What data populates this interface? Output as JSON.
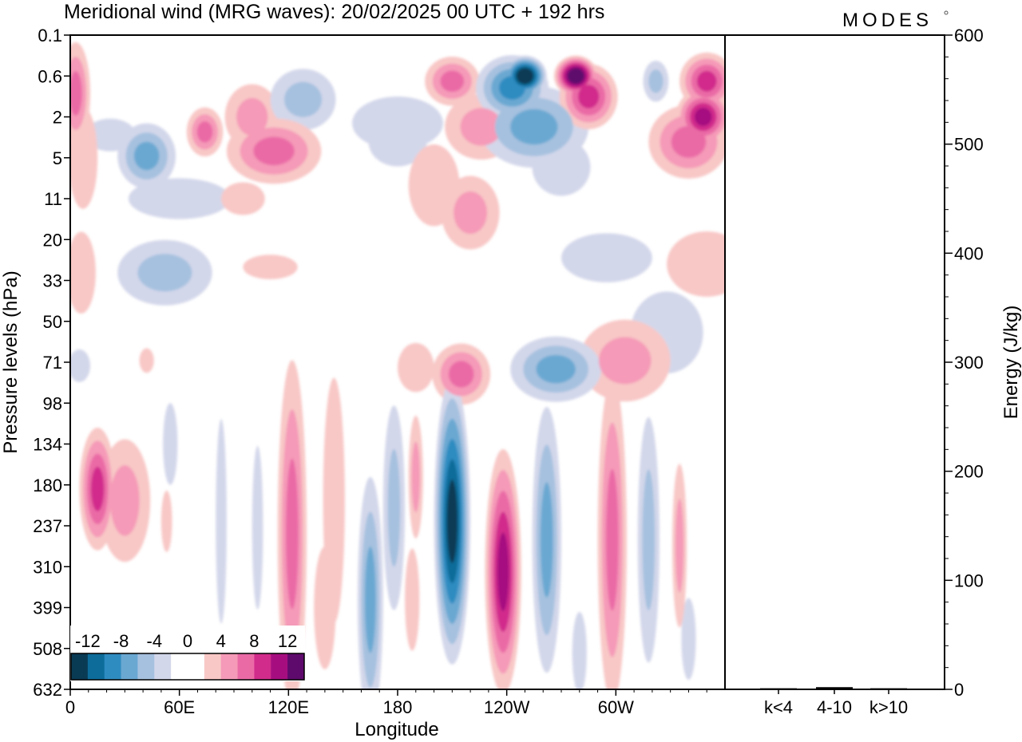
{
  "title": "Meridional wind (MRG waves):  20/02/2025  00 UTC  + 192 hrs",
  "logo": "MODES",
  "colors": {
    "neg": [
      "#0a3b55",
      "#0d6c9a",
      "#2f8cc1",
      "#6aa8d2",
      "#a6c1df",
      "#d3d7ea"
    ],
    "pos": [
      "#f8c8c6",
      "#f59ab8",
      "#ea6aa6",
      "#d12c8c",
      "#a60e80",
      "#5e0a6d"
    ],
    "zero": "#ffffff"
  },
  "chart_data": [
    {
      "type": "heatmap",
      "title": "",
      "xlabel": "Longitude",
      "ylabel": "Pressure levels (hPa)",
      "x_ticks": [
        "0",
        "60E",
        "120E",
        "180",
        "120W",
        "60W"
      ],
      "x_tick_values": [
        0,
        60,
        120,
        180,
        240,
        300
      ],
      "xlim": [
        0,
        360
      ],
      "y_ticks": [
        "0.1",
        "0.6",
        "2",
        "5",
        "11",
        "20",
        "33",
        "50",
        "71",
        "98",
        "134",
        "180",
        "237",
        "310",
        "399",
        "508",
        "632"
      ],
      "colorbar": {
        "labels": [
          "-12",
          "-8",
          "-4",
          "0",
          "4",
          "8",
          "12"
        ],
        "values": [
          -12,
          -8,
          -4,
          0,
          4,
          8,
          12
        ]
      },
      "features": [
        {
          "lon": 250,
          "lev": 0.6,
          "value": -14,
          "w": 12,
          "h": 1.0
        },
        {
          "lon": 243,
          "lev": 0.85,
          "value": -8,
          "w": 20,
          "h": 1.6
        },
        {
          "lon": 278,
          "lev": 0.6,
          "value": 14,
          "w": 12,
          "h": 1.0
        },
        {
          "lon": 285,
          "lev": 1.1,
          "value": 9,
          "w": 16,
          "h": 1.6
        },
        {
          "lon": 210,
          "lev": 0.7,
          "value": 6,
          "w": 15,
          "h": 1.2
        },
        {
          "lon": 350,
          "lev": 0.7,
          "value": 8,
          "w": 15,
          "h": 1.4
        },
        {
          "lon": 348,
          "lev": 2.0,
          "value": 10,
          "w": 15,
          "h": 1.4
        },
        {
          "lon": 340,
          "lev": 3.5,
          "value": 6,
          "w": 22,
          "h": 1.8
        },
        {
          "lon": 322,
          "lev": 0.7,
          "value": -5,
          "w": 7,
          "h": 1.0
        },
        {
          "lon": 3,
          "lev": 1.0,
          "value": 6,
          "w": 8,
          "h": 2.5
        },
        {
          "lon": 255,
          "lev": 2.5,
          "value": -6,
          "w": 30,
          "h": 2.0
        },
        {
          "lon": 226,
          "lev": 2.5,
          "value": 4,
          "w": 20,
          "h": 1.6
        },
        {
          "lon": 180,
          "lev": 2.3,
          "value": -3,
          "w": 25,
          "h": 1.3
        },
        {
          "lon": 128,
          "lev": 1.2,
          "value": -5,
          "w": 18,
          "h": 1.5
        },
        {
          "lon": 100,
          "lev": 2.0,
          "value": 4,
          "w": 15,
          "h": 1.6
        },
        {
          "lon": 74,
          "lev": 2.8,
          "value": 6,
          "w": 10,
          "h": 1.2
        },
        {
          "lon": 42,
          "lev": 4.8,
          "value": -7,
          "w": 16,
          "h": 1.6
        },
        {
          "lon": 22,
          "lev": 3.0,
          "value": -3,
          "w": 14,
          "h": 0.8
        },
        {
          "lon": 112,
          "lev": 4.3,
          "value": 6,
          "w": 26,
          "h": 1.6
        },
        {
          "lon": 7,
          "lev": 5.0,
          "value": 3,
          "w": 8,
          "h": 2.5
        },
        {
          "lon": 180,
          "lev": 3.5,
          "value": -3,
          "w": 16,
          "h": 1.2
        },
        {
          "lon": 200,
          "lev": 8.5,
          "value": 3,
          "w": 14,
          "h": 2.0
        },
        {
          "lon": 220,
          "lev": 13.5,
          "value": 4,
          "w": 16,
          "h": 1.8
        },
        {
          "lon": 270,
          "lev": 6.0,
          "value": -3,
          "w": 16,
          "h": 1.4
        },
        {
          "lon": 60,
          "lev": 11.0,
          "value": -3,
          "w": 28,
          "h": 1.0
        },
        {
          "lon": 95,
          "lev": 11.0,
          "value": 3,
          "w": 12,
          "h": 0.8
        },
        {
          "lon": 52,
          "lev": 30.0,
          "value": -4,
          "w": 26,
          "h": 1.6
        },
        {
          "lon": 295,
          "lev": 25.0,
          "value": -3,
          "w": 25,
          "h": 1.2
        },
        {
          "lon": 350,
          "lev": 27.0,
          "value": 3,
          "w": 22,
          "h": 1.6
        },
        {
          "lon": 328,
          "lev": 55.0,
          "value": -3,
          "w": 20,
          "h": 2.0
        },
        {
          "lon": 6,
          "lev": 30.0,
          "value": 3,
          "w": 8,
          "h": 2.0
        },
        {
          "lon": 110,
          "lev": 28.0,
          "value": 3,
          "w": 15,
          "h": 0.6
        },
        {
          "lon": 305,
          "lev": 70.0,
          "value": 4,
          "w": 25,
          "h": 2.0
        },
        {
          "lon": 267,
          "lev": 75.0,
          "value": -6,
          "w": 25,
          "h": 1.6
        },
        {
          "lon": 215,
          "lev": 78.0,
          "value": 6,
          "w": 16,
          "h": 1.5
        },
        {
          "lon": 190,
          "lev": 74.0,
          "value": 3,
          "w": 10,
          "h": 1.2
        },
        {
          "lon": 5,
          "lev": 73.0,
          "value": -3,
          "w": 6,
          "h": 0.8
        },
        {
          "lon": 42,
          "lev": 70.0,
          "value": 3,
          "w": 4,
          "h": 0.6
        },
        {
          "lon": 15,
          "lev": 185.0,
          "value": 9,
          "w": 10,
          "h": 3.0
        },
        {
          "lon": 30,
          "lev": 200.0,
          "value": 5,
          "w": 14,
          "h": 3.0
        },
        {
          "lon": 210,
          "lev": 230.0,
          "value": -12,
          "w": 10,
          "h": 7.0
        },
        {
          "lon": 238,
          "lev": 320.0,
          "value": 11,
          "w": 10,
          "h": 6.0
        },
        {
          "lon": 262,
          "lev": 260.0,
          "value": -7,
          "w": 8,
          "h": 6.5
        },
        {
          "lon": 298,
          "lev": 260.0,
          "value": 6,
          "w": 8,
          "h": 8.0
        },
        {
          "lon": 318,
          "lev": 260.0,
          "value": -5,
          "w": 6,
          "h": 6.0
        },
        {
          "lon": 335,
          "lev": 270.0,
          "value": 4,
          "w": 4,
          "h": 4.0
        },
        {
          "lon": 165,
          "lev": 380.0,
          "value": -6,
          "w": 7,
          "h": 6.0
        },
        {
          "lon": 178,
          "lev": 210.0,
          "value": -4,
          "w": 6,
          "h": 5.0
        },
        {
          "lon": 122,
          "lev": 250.0,
          "value": 6,
          "w": 8,
          "h": 8.5
        },
        {
          "lon": 145,
          "lev": 200.0,
          "value": 3,
          "w": 6,
          "h": 6.0
        },
        {
          "lon": 190,
          "lev": 170.0,
          "value": 4,
          "w": 4,
          "h": 3.0
        },
        {
          "lon": 188,
          "lev": 380.0,
          "value": 3,
          "w": 4,
          "h": 2.5
        },
        {
          "lon": 140,
          "lev": 400.0,
          "value": 3,
          "w": 6,
          "h": 3.0
        },
        {
          "lon": 83,
          "lev": 230.0,
          "value": -3,
          "w": 3,
          "h": 5.0
        },
        {
          "lon": 103,
          "lev": 240.0,
          "value": -3,
          "w": 3,
          "h": 4.0
        },
        {
          "lon": 55,
          "lev": 134.0,
          "value": -3,
          "w": 4,
          "h": 2.0
        },
        {
          "lon": 53,
          "lev": 230.0,
          "value": 3,
          "w": 3,
          "h": 1.5
        },
        {
          "lon": 280,
          "lev": 520.0,
          "value": -3,
          "w": 4,
          "h": 2.0
        },
        {
          "lon": 340,
          "lev": 480.0,
          "value": -3,
          "w": 4,
          "h": 2.0
        },
        {
          "lon": 212,
          "lev": 105.0,
          "value": -3,
          "w": 3,
          "h": 1.0
        }
      ]
    },
    {
      "type": "bar",
      "title": "",
      "xlabel": "",
      "ylabel": "Energy (J/kg)",
      "categories": [
        "k<4",
        "4-10",
        "k>10"
      ],
      "values": [
        1,
        2,
        1
      ],
      "ylim": [
        0,
        600
      ],
      "y_ticks": [
        "0",
        "100",
        "200",
        "300",
        "400",
        "500",
        "600"
      ],
      "y_tick_values": [
        0,
        100,
        200,
        300,
        400,
        500,
        600
      ]
    }
  ]
}
